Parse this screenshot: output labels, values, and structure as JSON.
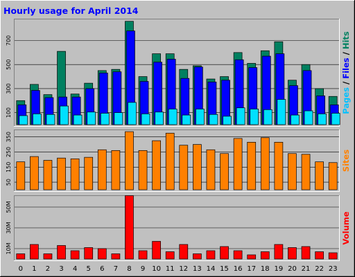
{
  "chart_data": {
    "type": "bar",
    "title": "Hourly usage for April 2014",
    "categories": [
      "0",
      "1",
      "2",
      "3",
      "4",
      "5",
      "6",
      "7",
      "8",
      "9",
      "10",
      "11",
      "12",
      "13",
      "14",
      "15",
      "16",
      "17",
      "18",
      "19",
      "20",
      "21",
      "22",
      "23"
    ],
    "panels": [
      {
        "name": "pages-files-hits",
        "ylim": [
          0,
          870
        ],
        "yticks": [
          "100",
          "300",
          "500",
          "700"
        ],
        "ytick_values": [
          100,
          300,
          500,
          700
        ],
        "ylabel_parts": [
          {
            "text": "Pages",
            "color": "#00C0FF"
          },
          {
            "text": " / ",
            "color": "#000000"
          },
          {
            "text": "Files",
            "color": "#0000FF"
          },
          {
            "text": " / ",
            "color": "#000000"
          },
          {
            "text": "Hits",
            "color": "#008060"
          }
        ],
        "series": [
          {
            "name": "Hits",
            "color": "#008060",
            "values": [
              200,
              335,
              250,
              610,
              255,
              345,
              450,
              460,
              860,
              400,
              590,
              590,
              460,
              490,
              380,
              400,
              600,
              510,
              615,
              690,
              370,
              500,
              300,
              235
            ]
          },
          {
            "name": "Files",
            "color": "#0000FF",
            "values": [
              165,
              285,
              225,
              230,
              230,
              300,
              430,
              440,
              780,
              360,
              520,
              545,
              385,
              480,
              355,
              370,
              540,
              475,
              570,
              590,
              325,
              450,
              240,
              165
            ]
          },
          {
            "name": "Pages",
            "color": "#00E0FF",
            "values": [
              75,
              90,
              85,
              155,
              80,
              105,
              95,
              100,
              185,
              90,
              105,
              130,
              80,
              130,
              85,
              70,
              140,
              130,
              125,
              210,
              80,
              115,
              90,
              95
            ]
          }
        ]
      },
      {
        "name": "sites",
        "ylim": [
          0,
          390
        ],
        "yticks": [
          "50",
          "150",
          "250",
          "350"
        ],
        "ytick_values": [
          50,
          150,
          250,
          350
        ],
        "ylabel_parts": [
          {
            "text": "Sites",
            "color": "#FF8000"
          }
        ],
        "series": [
          {
            "name": "Sites",
            "color": "#FF8000",
            "values": [
              185,
              220,
              195,
              210,
              205,
              215,
              265,
              260,
              385,
              260,
              325,
              375,
              295,
              300,
              265,
              240,
              340,
              315,
              345,
              315,
              240,
              235,
              185,
              180
            ]
          }
        ]
      },
      {
        "name": "volume",
        "ylim": [
          0,
          60
        ],
        "yticks": [
          "10M",
          "30M",
          "50M"
        ],
        "ytick_values": [
          10,
          30,
          50
        ],
        "ylabel_parts": [
          {
            "text": "Volume",
            "color": "#FF0000"
          }
        ],
        "series": [
          {
            "name": "Volume",
            "color": "#FF0000",
            "values": [
              5,
              14,
              5,
              13,
              8,
              11,
              10,
              5,
              61,
              8,
              17,
              7,
              14,
              5,
              8,
              12,
              8,
              4,
              7,
              14,
              11,
              12,
              7,
              6
            ]
          }
        ]
      }
    ]
  }
}
